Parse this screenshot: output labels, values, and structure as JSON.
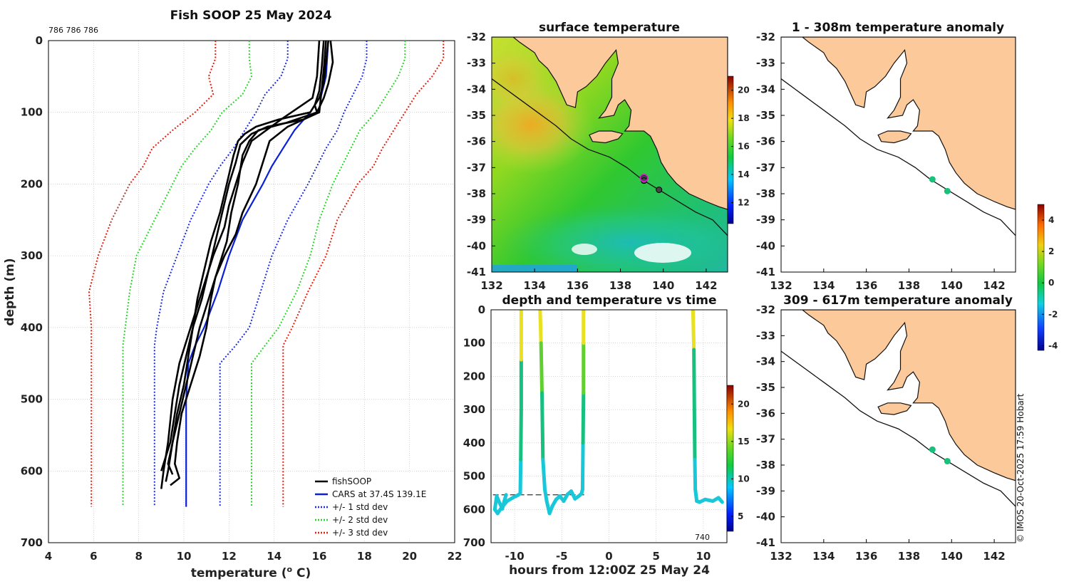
{
  "figure_title": "Fish SOOP 25 May 2024",
  "deployment_ids": "786 786 786",
  "copyright": "© IMOS 20-Oct-2025 17:59 Hobart",
  "colors": {
    "land": "#fbc99a",
    "coast": "#111111",
    "cars": "#0a20d8",
    "fish": "#000000",
    "std1": "#1a2be0",
    "std2": "#2ad42a",
    "std3": "#e02010",
    "marker": "#22c55e",
    "highlight": "#d11ad1"
  },
  "chart_data": [
    {
      "id": "profile",
      "type": "line",
      "title": "Fish SOOP 25 May 2024",
      "xlabel": "temperature (",
      "xlabel_sup": "o",
      "xlabel_end": " C)",
      "ylabel": "depth (m)",
      "xlim": [
        4,
        22
      ],
      "ylim": [
        0,
        700
      ],
      "xticks": [
        "4",
        "6",
        "8",
        "10",
        "12",
        "14",
        "16",
        "18",
        "20",
        "22"
      ],
      "yticks": [
        "0",
        "100",
        "200",
        "300",
        "400",
        "500",
        "600",
        "700"
      ],
      "legend": [
        "fishSOOP",
        "CARS at 37.4S 139.1E",
        "+/- 1 std dev",
        "+/- 2 std dev",
        "+/- 3 std dev"
      ],
      "cars": {
        "depth": [
          0,
          50,
          75,
          100,
          125,
          150,
          175,
          200,
          250,
          300,
          350,
          400,
          425,
          450,
          500,
          550,
          600,
          650
        ],
        "temp": [
          16.4,
          16.3,
          16.1,
          15.6,
          14.9,
          14.4,
          13.9,
          13.5,
          12.6,
          12.0,
          11.5,
          10.9,
          10.5,
          10.2,
          10.1,
          10.1,
          10.1,
          10.1
        ]
      },
      "std1": {
        "depth": [
          0,
          25,
          50,
          75,
          100,
          125,
          150,
          175,
          200,
          250,
          300,
          350,
          400,
          425,
          450,
          500,
          550,
          600,
          650
        ],
        "minus": [
          14.6,
          14.6,
          14.3,
          13.6,
          13.2,
          12.7,
          12.2,
          11.6,
          11.1,
          10.3,
          9.7,
          9.1,
          8.8,
          8.7,
          8.7,
          8.7,
          8.7,
          8.7,
          8.7
        ],
        "plus": [
          18.1,
          18.1,
          17.9,
          17.5,
          17.1,
          16.8,
          16.3,
          15.9,
          15.5,
          14.6,
          13.9,
          13.4,
          12.9,
          12.3,
          11.6,
          11.6,
          11.6,
          11.6,
          11.6
        ]
      },
      "std2": {
        "depth": [
          0,
          25,
          50,
          75,
          100,
          125,
          150,
          175,
          200,
          250,
          300,
          350,
          400,
          425,
          450,
          500,
          550,
          600,
          650
        ],
        "minus": [
          12.9,
          12.9,
          13.0,
          12.6,
          11.7,
          11.2,
          10.5,
          9.9,
          9.5,
          8.7,
          7.9,
          7.6,
          7.4,
          7.3,
          7.3,
          7.3,
          7.3,
          7.3,
          7.3
        ],
        "plus": [
          19.8,
          19.8,
          19.5,
          19.0,
          18.5,
          17.8,
          17.4,
          17.0,
          16.6,
          16.0,
          15.6,
          15.0,
          14.2,
          13.6,
          13.0,
          13.0,
          13.0,
          13.0,
          13.0
        ]
      },
      "std3": {
        "depth": [
          0,
          25,
          50,
          75,
          100,
          125,
          150,
          175,
          200,
          250,
          300,
          350,
          400,
          425,
          450,
          500,
          550,
          600,
          650
        ],
        "minus": [
          11.4,
          11.4,
          11.1,
          11.3,
          10.5,
          9.5,
          8.6,
          8.2,
          7.6,
          6.8,
          6.2,
          5.8,
          5.9,
          5.9,
          5.9,
          5.9,
          5.9,
          5.9,
          5.9
        ],
        "plus": [
          21.5,
          21.5,
          21.0,
          20.3,
          19.8,
          19.3,
          18.8,
          18.4,
          17.7,
          16.8,
          16.3,
          15.5,
          14.8,
          14.4,
          14.4,
          14.4,
          14.4,
          14.4,
          14.4
        ]
      },
      "fish": [
        {
          "depth": [
            0,
            30,
            60,
            80,
            100,
            110,
            120,
            130,
            140,
            160,
            200,
            240,
            280,
            320,
            360,
            400,
            440,
            480,
            520,
            560,
            590,
            605
          ],
          "temp": [
            16.4,
            16.3,
            16.2,
            16.0,
            15.6,
            14.2,
            13.2,
            12.7,
            12.4,
            12.2,
            11.9,
            11.6,
            11.2,
            10.9,
            10.6,
            10.4,
            10.2,
            10.0,
            9.7,
            9.5,
            9.3,
            9.5
          ]
        },
        {
          "depth": [
            0,
            40,
            70,
            90,
            100,
            110,
            120,
            130,
            145,
            170,
            200,
            240,
            280,
            320,
            360,
            400,
            440,
            480,
            520,
            560,
            600
          ],
          "temp": [
            16.2,
            16.1,
            16.0,
            15.8,
            15.9,
            15.3,
            13.7,
            13.0,
            12.5,
            12.3,
            12.0,
            11.7,
            11.4,
            11.1,
            10.8,
            10.4,
            10.1,
            9.8,
            9.6,
            9.4,
            9.0
          ]
        },
        {
          "depth": [
            0,
            30,
            60,
            80,
            100,
            115,
            125,
            140,
            160,
            200,
            240,
            280,
            300,
            330,
            360,
            400,
            440,
            480,
            520,
            560,
            600,
            615
          ],
          "temp": [
            16.5,
            16.6,
            16.4,
            16.2,
            15.9,
            14.5,
            13.3,
            12.9,
            12.6,
            12.4,
            12.1,
            11.9,
            11.7,
            11.4,
            11.1,
            10.7,
            10.4,
            10.1,
            9.8,
            9.5,
            9.3,
            9.2
          ]
        },
        {
          "depth": [
            0,
            40,
            70,
            100,
            120,
            140,
            160,
            200,
            240,
            270,
            300,
            330,
            360,
            400,
            440,
            480,
            520,
            560,
            590,
            610,
            620
          ],
          "temp": [
            16.3,
            16.2,
            16.1,
            16.0,
            14.6,
            13.8,
            13.6,
            13.2,
            12.6,
            12.3,
            11.8,
            11.4,
            11.2,
            11.0,
            10.7,
            10.3,
            9.9,
            9.7,
            9.6,
            9.8,
            9.4
          ]
        },
        {
          "depth": [
            0,
            50,
            80,
            110,
            140,
            170,
            200,
            230,
            260,
            300,
            350,
            400,
            450,
            500,
            560,
            600,
            625
          ],
          "temp": [
            16.0,
            15.9,
            15.7,
            14.3,
            13.0,
            12.6,
            12.3,
            12.0,
            11.8,
            11.3,
            10.8,
            10.3,
            9.8,
            9.5,
            9.3,
            9.1,
            9.0
          ]
        }
      ]
    },
    {
      "id": "sst_map",
      "type": "heatmap",
      "title": "surface temperature",
      "xlim": [
        132,
        143
      ],
      "ylim": [
        -41,
        -32
      ],
      "xticks": [
        "132",
        "134",
        "136",
        "138",
        "140",
        "142"
      ],
      "yticks": [
        "-32",
        "-33",
        "-34",
        "-35",
        "-36",
        "-37",
        "-38",
        "-39",
        "-40",
        "-41"
      ],
      "colorbar_ticks": [
        "12",
        "14",
        "16",
        "18",
        "20"
      ],
      "colorbar_range": [
        10.5,
        21
      ],
      "stations": [
        {
          "lon": 139.1,
          "lat": -37.4
        },
        {
          "lon": 139.1,
          "lat": -37.5
        },
        {
          "lon": 139.8,
          "lat": -37.85
        }
      ]
    },
    {
      "id": "time_depth",
      "type": "scatter",
      "title": "depth and temperature vs time",
      "xlabel": "hours from 12:00Z 25 May 24",
      "xlim": [
        -12.5,
        12.5
      ],
      "ylim": [
        0,
        700
      ],
      "xticks": [
        "-10",
        "-5",
        "0",
        "5",
        "10"
      ],
      "yticks": [
        "0",
        "100",
        "200",
        "300",
        "400",
        "500",
        "600",
        "700"
      ],
      "colorbar_ticks": [
        "5",
        "10",
        "15",
        "20"
      ],
      "colorbar_range": [
        3,
        22.5
      ],
      "annotation": "740",
      "reference_depth": 556,
      "casts": [
        {
          "time": [
            -10.9,
            -11.1,
            -11.3,
            -11.6,
            -11.9,
            -12.1,
            -11.8,
            -11.4,
            -10.8,
            -10.2,
            -9.7,
            -9.4,
            -9.35,
            -9.3,
            -9.3,
            -9.3,
            -9.3
          ],
          "depth": [
            556,
            575,
            598,
            580,
            560,
            600,
            612,
            595,
            575,
            565,
            558,
            552,
            450,
            300,
            150,
            50,
            0
          ]
        },
        {
          "time": [
            -7.3,
            -7.2,
            -7.1,
            -7.0,
            -6.8,
            -6.6,
            -6.3,
            -6.0,
            -5.6,
            -5.2,
            -4.8,
            -4.4,
            -4.0,
            -3.6,
            -3.2,
            -2.9,
            -2.8,
            -2.75,
            -2.7,
            -2.7,
            -2.7
          ],
          "depth": [
            0,
            100,
            250,
            450,
            540,
            575,
            612,
            590,
            570,
            560,
            575,
            555,
            545,
            568,
            560,
            552,
            540,
            400,
            250,
            100,
            0
          ]
        },
        {
          "time": [
            8.9,
            9.0,
            9.05,
            9.1,
            9.15,
            9.3,
            9.6,
            10.2,
            11.0,
            11.6,
            12.0
          ],
          "depth": [
            0,
            120,
            300,
            450,
            540,
            575,
            578,
            570,
            575,
            565,
            578
          ]
        }
      ]
    },
    {
      "id": "anom_upper",
      "type": "scatter",
      "title": "1 - 308m temperature anomaly",
      "xlim": [
        132,
        143
      ],
      "ylim": [
        -41,
        -32
      ],
      "xticks": [
        "132",
        "134",
        "136",
        "138",
        "140",
        "142"
      ],
      "yticks": [
        "-32",
        "-33",
        "-34",
        "-35",
        "-36",
        "-37",
        "-38",
        "-39",
        "-40",
        "-41"
      ],
      "points": [
        {
          "lon": 139.1,
          "lat": -37.45,
          "anomaly": 0.0
        },
        {
          "lon": 139.8,
          "lat": -37.9,
          "anomaly": 0.2
        }
      ]
    },
    {
      "id": "anom_lower",
      "type": "scatter",
      "title": "309 - 617m temperature anomaly",
      "xlim": [
        132,
        143
      ],
      "ylim": [
        -41,
        -32
      ],
      "xticks": [
        "132",
        "134",
        "136",
        "138",
        "140",
        "142"
      ],
      "yticks": [
        "-32",
        "-33",
        "-34",
        "-35",
        "-36",
        "-37",
        "-38",
        "-39",
        "-40",
        "-41"
      ],
      "points": [
        {
          "lon": 139.1,
          "lat": -37.4,
          "anomaly": 0.1
        },
        {
          "lon": 139.8,
          "lat": -37.85,
          "anomaly": 0.1
        }
      ]
    },
    {
      "id": "anomaly_colorbar",
      "type": "heatmap",
      "colorbar_ticks": [
        "4",
        "2",
        "0",
        "-2",
        "-4"
      ],
      "colorbar_range": [
        -4.3,
        5
      ]
    }
  ]
}
